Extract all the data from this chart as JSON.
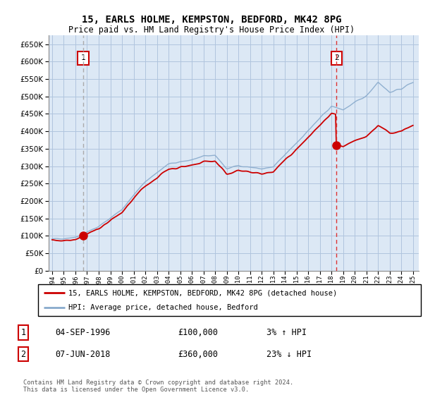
{
  "title": "15, EARLS HOLME, KEMPSTON, BEDFORD, MK42 8PG",
  "subtitle": "Price paid vs. HM Land Registry's House Price Index (HPI)",
  "ylim": [
    0,
    675000
  ],
  "yticks": [
    0,
    50000,
    100000,
    150000,
    200000,
    250000,
    300000,
    350000,
    400000,
    450000,
    500000,
    550000,
    600000,
    650000
  ],
  "sale1_date": "04-SEP-1996",
  "sale1_price": 100000,
  "sale1_x": 1996.67,
  "sale1_hpi_pct": "3% ↑ HPI",
  "sale2_date": "07-JUN-2018",
  "sale2_price": 360000,
  "sale2_x": 2018.44,
  "sale2_hpi_pct": "23% ↓ HPI",
  "legend_house": "15, EARLS HOLME, KEMPSTON, BEDFORD, MK42 8PG (detached house)",
  "legend_hpi": "HPI: Average price, detached house, Bedford",
  "footer": "Contains HM Land Registry data © Crown copyright and database right 2024.\nThis data is licensed under the Open Government Licence v3.0.",
  "house_line_color": "#cc0000",
  "hpi_line_color": "#88aacc",
  "background_color": "#dce8f5",
  "grid_color": "#b0c4de",
  "sale_marker_color": "#cc0000",
  "vline1_color": "#aaaaaa",
  "vline2_color": "#dd3333",
  "box_color": "#cc0000",
  "xlim_left": 1993.7,
  "xlim_right": 2025.5,
  "xstart": 1994,
  "xend": 2025
}
